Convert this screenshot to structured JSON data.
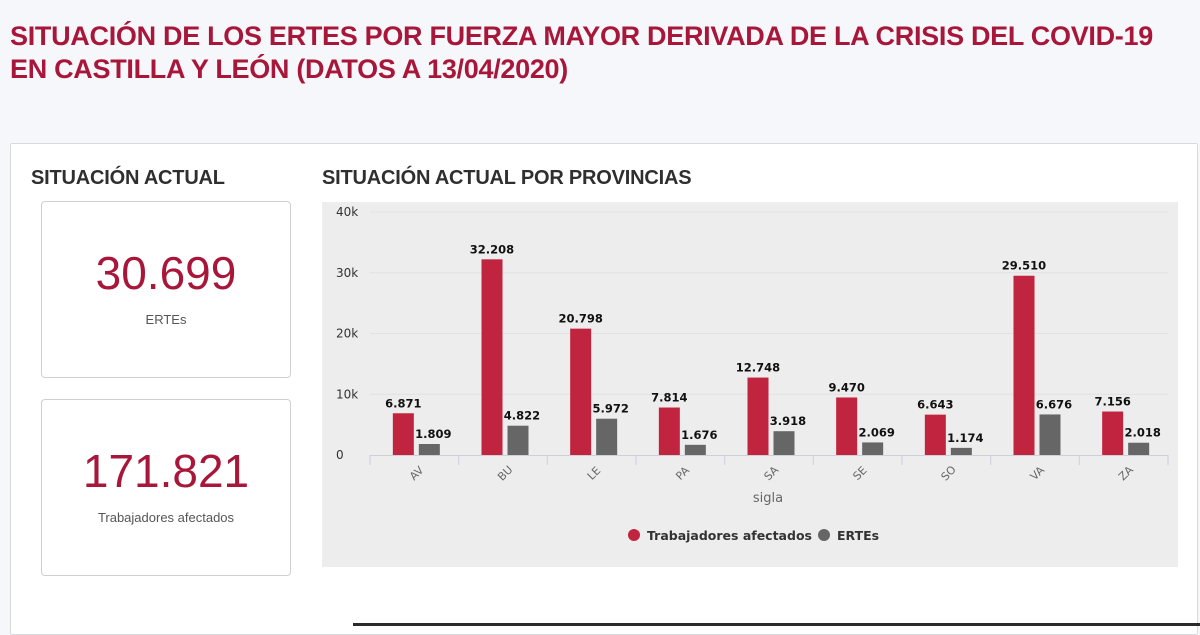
{
  "header": {
    "title_line1": "SITUACIÓN DE LOS ERTES POR FUERZA MAYOR DERIVADA DE LA CRISIS DEL COVID-19",
    "title_line2": "EN CASTILLA Y LEÓN (DATOS A 13/04/2020)"
  },
  "summary": {
    "title": "SITUACIÓN ACTUAL",
    "cards": [
      {
        "value": "30.699",
        "label": "ERTEs"
      },
      {
        "value": "171.821",
        "label": "Trabajadores afectados"
      }
    ]
  },
  "colors": {
    "accent": "#a8173a",
    "series_workers": "#c0243e",
    "series_ertes": "#666666",
    "chart_bg": "#ededed"
  },
  "chart_section": {
    "title": "SITUACIÓN ACTUAL POR PROVINCIAS"
  },
  "chart_data": {
    "type": "bar",
    "title": "SITUACIÓN ACTUAL POR PROVINCIAS",
    "xlabel": "sigla",
    "ylabel": "",
    "categories": [
      "AV",
      "BU",
      "LE",
      "PA",
      "SA",
      "SE",
      "SO",
      "VA",
      "ZA"
    ],
    "series": [
      {
        "name": "Trabajadores afectados",
        "color": "#c0243e",
        "values": [
          6871,
          32208,
          20798,
          7814,
          12748,
          9470,
          6643,
          29510,
          7156
        ],
        "labels": [
          "6.871",
          "32.208",
          "20.798",
          "7.814",
          "12.748",
          "9.470",
          "6.643",
          "29.510",
          "7.156"
        ]
      },
      {
        "name": "ERTEs",
        "color": "#666666",
        "values": [
          1809,
          4822,
          5972,
          1676,
          3918,
          2069,
          1174,
          6676,
          2018
        ],
        "labels": [
          "1.809",
          "4.822",
          "5.972",
          "1.676",
          "3.918",
          "2.069",
          "1.174",
          "6.676",
          "2.018"
        ]
      }
    ],
    "ylim": [
      0,
      40000
    ],
    "yticks": [
      0,
      10000,
      20000,
      30000,
      40000
    ],
    "ytick_labels": [
      "0",
      "10k",
      "20k",
      "30k",
      "40k"
    ],
    "grid": true,
    "legend_position": "bottom-center"
  }
}
